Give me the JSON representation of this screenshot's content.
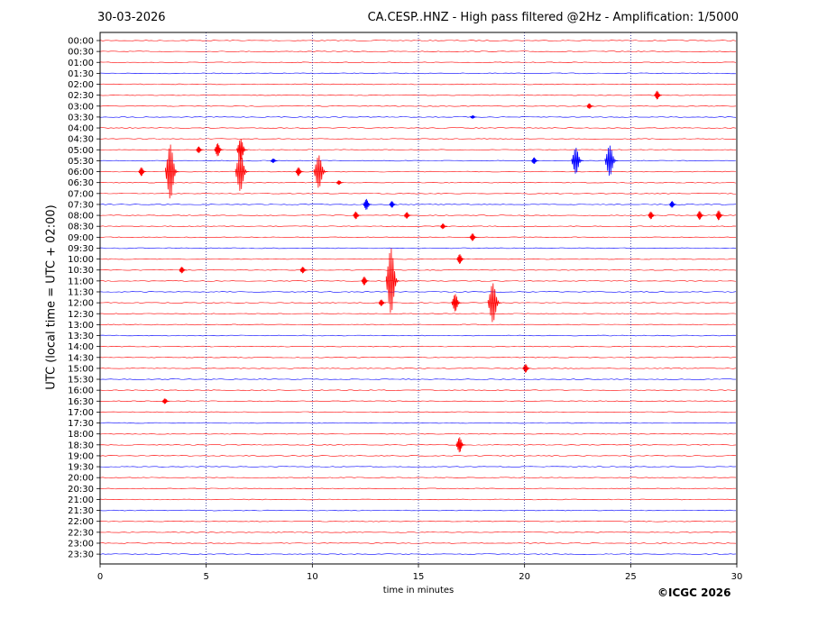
{
  "header": {
    "date": "30-03-2026",
    "title": "CA.CESP..HNZ - High pass filtered @2Hz - Amplification: 1/5000"
  },
  "footer": {
    "copyright": "©ICGC 2026"
  },
  "colors": {
    "trace_a": "#ff0000",
    "trace_b": "#0000ff",
    "frame": "#000000",
    "grid": "#000080"
  },
  "chart_data": {
    "type": "line",
    "chart_kind": "helicorder",
    "xlabel": "time in minutes",
    "ylabel": "UTC (local time = UTC + 02:00)",
    "xlim": [
      0,
      30
    ],
    "x_ticks": [
      0,
      5,
      10,
      15,
      20,
      25,
      30
    ],
    "grid_x": "dotted vertical lines at 5-minute intervals",
    "row_labels": [
      "00:00",
      "00:30",
      "01:00",
      "01:30",
      "02:00",
      "02:30",
      "03:00",
      "03:30",
      "04:00",
      "04:30",
      "05:00",
      "05:30",
      "06:00",
      "06:30",
      "07:00",
      "07:30",
      "08:00",
      "08:30",
      "09:00",
      "09:30",
      "10:00",
      "10:30",
      "11:00",
      "11:30",
      "12:00",
      "12:30",
      "13:00",
      "13:30",
      "14:00",
      "14:30",
      "15:00",
      "15:30",
      "16:00",
      "16:30",
      "17:00",
      "17:30",
      "18:00",
      "18:30",
      "19:00",
      "19:30",
      "20:00",
      "20:30",
      "21:00",
      "21:30",
      "22:00",
      "22:30",
      "23:00",
      "23:30"
    ],
    "row_colors_cycle": [
      "trace_a",
      "trace_a",
      "trace_a",
      "trace_b"
    ],
    "events": [
      {
        "row": 5,
        "minute": 26.3,
        "amp": 0.4
      },
      {
        "row": 6,
        "minute": 23.1,
        "amp": 0.25
      },
      {
        "row": 7,
        "minute": 17.6,
        "amp": 0.15
      },
      {
        "row": 10,
        "minute": 5.6,
        "amp": 0.6
      },
      {
        "row": 10,
        "minute": 6.7,
        "amp": 1.0
      },
      {
        "row": 10,
        "minute": 4.7,
        "amp": 0.3
      },
      {
        "row": 11,
        "minute": 22.5,
        "amp": 1.2
      },
      {
        "row": 11,
        "minute": 24.1,
        "amp": 1.4
      },
      {
        "row": 11,
        "minute": 20.5,
        "amp": 0.3
      },
      {
        "row": 11,
        "minute": 8.2,
        "amp": 0.2
      },
      {
        "row": 12,
        "minute": 3.4,
        "amp": 2.5
      },
      {
        "row": 12,
        "minute": 10.4,
        "amp": 1.5
      },
      {
        "row": 12,
        "minute": 6.7,
        "amp": 1.8
      },
      {
        "row": 12,
        "minute": 2.0,
        "amp": 0.4
      },
      {
        "row": 12,
        "minute": 9.4,
        "amp": 0.4
      },
      {
        "row": 13,
        "minute": 11.3,
        "amp": 0.2
      },
      {
        "row": 15,
        "minute": 12.6,
        "amp": 0.5
      },
      {
        "row": 15,
        "minute": 13.8,
        "amp": 0.3
      },
      {
        "row": 15,
        "minute": 27.0,
        "amp": 0.3
      },
      {
        "row": 16,
        "minute": 12.1,
        "amp": 0.35
      },
      {
        "row": 16,
        "minute": 14.5,
        "amp": 0.3
      },
      {
        "row": 16,
        "minute": 26.0,
        "amp": 0.35
      },
      {
        "row": 16,
        "minute": 28.3,
        "amp": 0.4
      },
      {
        "row": 16,
        "minute": 29.2,
        "amp": 0.45
      },
      {
        "row": 17,
        "minute": 16.2,
        "amp": 0.25
      },
      {
        "row": 18,
        "minute": 17.6,
        "amp": 0.35
      },
      {
        "row": 20,
        "minute": 17.0,
        "amp": 0.45
      },
      {
        "row": 21,
        "minute": 3.9,
        "amp": 0.3
      },
      {
        "row": 21,
        "minute": 9.6,
        "amp": 0.3
      },
      {
        "row": 22,
        "minute": 12.5,
        "amp": 0.4
      },
      {
        "row": 22,
        "minute": 13.8,
        "amp": 3.0
      },
      {
        "row": 24,
        "minute": 16.8,
        "amp": 0.8
      },
      {
        "row": 24,
        "minute": 18.6,
        "amp": 1.8
      },
      {
        "row": 24,
        "minute": 13.3,
        "amp": 0.3
      },
      {
        "row": 30,
        "minute": 20.1,
        "amp": 0.4
      },
      {
        "row": 33,
        "minute": 3.1,
        "amp": 0.25
      },
      {
        "row": 37,
        "minute": 17.0,
        "amp": 0.7
      }
    ]
  }
}
